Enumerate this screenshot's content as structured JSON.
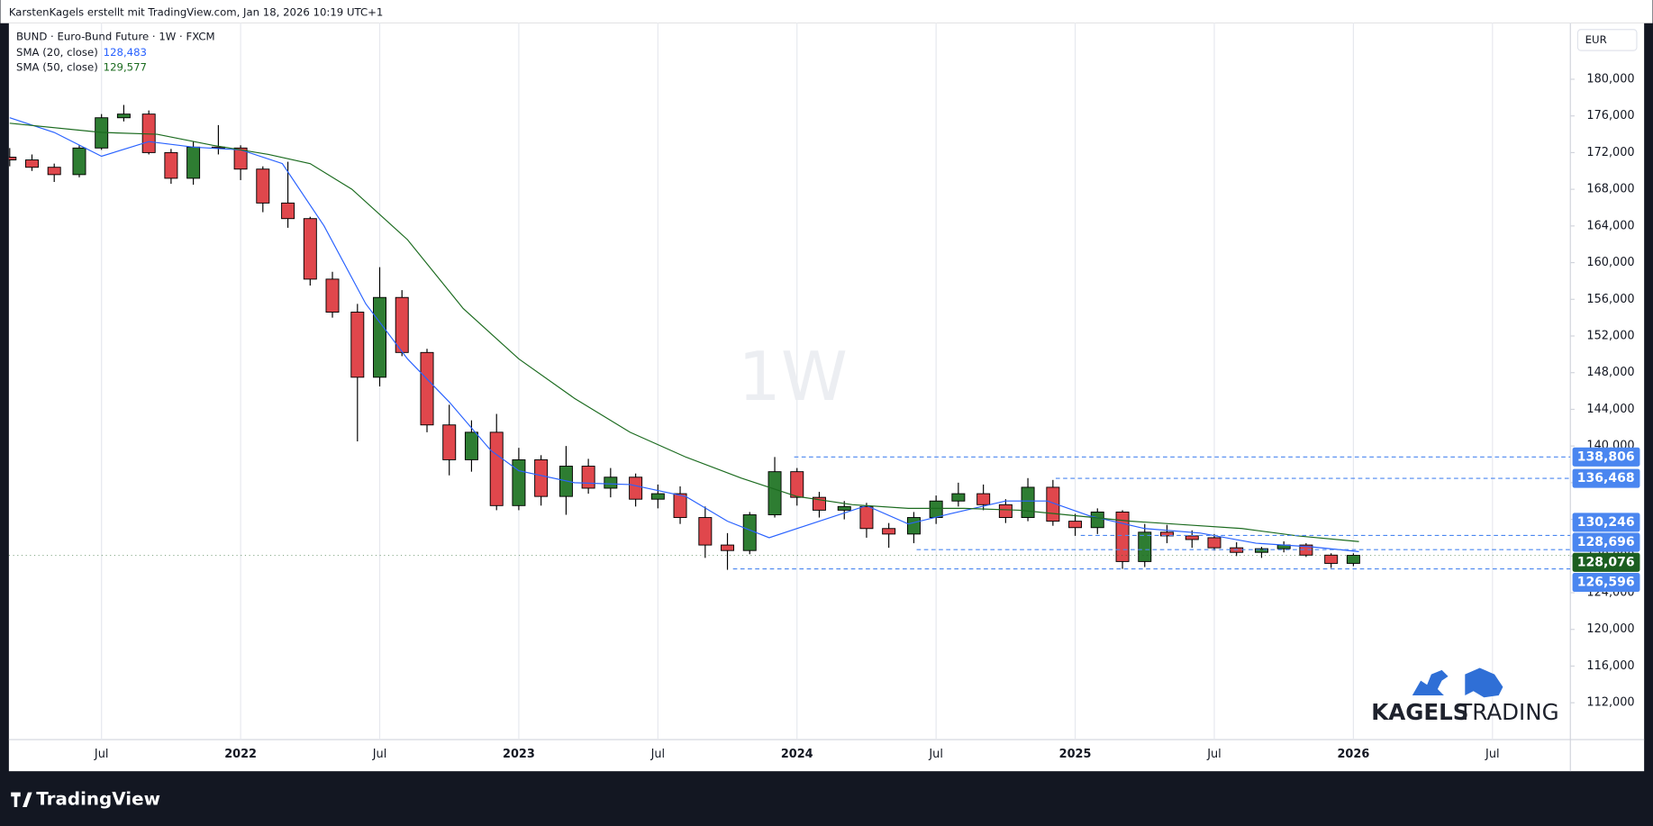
{
  "attribution": "KarstenKagels erstellt mit TradingView.com, Jan 18, 2026 10:19 UTC+1",
  "footer_brand": "TradingView",
  "logo": {
    "bold": "KAGELS",
    "light": "TRADING"
  },
  "chart_data": {
    "type": "candlestick",
    "title": "BUND · Euro-Bund Future · 1W · FXCM",
    "currency": "EUR",
    "watermark": "1W",
    "up_color": "#2e7d32",
    "down_color": "#e0474c",
    "grid": true,
    "x": [
      2021.17,
      2021.25,
      2021.33,
      2021.42,
      2021.5,
      2021.58,
      2021.67,
      2021.75,
      2021.83,
      2021.92,
      2022.0,
      2022.08,
      2022.17,
      2022.25,
      2022.33,
      2022.42,
      2022.5,
      2022.58,
      2022.67,
      2022.75,
      2022.83,
      2022.92,
      2023.0,
      2023.08,
      2023.17,
      2023.25,
      2023.33,
      2023.42,
      2023.5,
      2023.58,
      2023.67,
      2023.75,
      2023.83,
      2023.92,
      2024.0,
      2024.08,
      2024.17,
      2024.25,
      2024.33,
      2024.42,
      2024.5,
      2024.58,
      2024.67,
      2024.75,
      2024.83,
      2024.92,
      2025.0,
      2025.08,
      2025.17,
      2025.25,
      2025.33,
      2025.42,
      2025.5,
      2025.58,
      2025.67,
      2025.75,
      2025.83,
      2025.92,
      2026.0
    ],
    "open": [
      171.5,
      171.2,
      170.4,
      169.6,
      172.5,
      175.8,
      176.2,
      172,
      169.2,
      172.6,
      172.5,
      170.2,
      166.5,
      164.8,
      158.2,
      154.6,
      147.5,
      156.2,
      150.2,
      142.3,
      138.5,
      141.5,
      133.5,
      138.5,
      134.5,
      137.8,
      135.4,
      136.6,
      134.2,
      134.8,
      132.2,
      129.2,
      128.6,
      132.5,
      137.2,
      134.4,
      133,
      133.4,
      131,
      130.4,
      132.2,
      134,
      134.8,
      133.6,
      132.2,
      135.5,
      131.8,
      131.1,
      132.8,
      127.4,
      130.6,
      130.2,
      130,
      128.9,
      128.4,
      128.8,
      129.2,
      128.1,
      127.2
    ],
    "high": [
      172.5,
      171.8,
      170.8,
      172.8,
      176.2,
      177.2,
      176.6,
      172.4,
      173.2,
      175,
      172.8,
      170.5,
      171,
      165,
      159,
      155.5,
      159.5,
      157,
      150.6,
      144.5,
      142.8,
      143.5,
      139.8,
      139,
      140,
      138.6,
      137.6,
      137,
      135.8,
      135.6,
      133.4,
      130.5,
      132.8,
      138.8,
      137.6,
      135,
      134,
      133.8,
      131.6,
      132.8,
      134.6,
      136,
      135.8,
      134.2,
      136.5,
      136.3,
      132.6,
      133.2,
      133,
      131.5,
      131.4,
      130.8,
      130.4,
      129.5,
      129,
      129.6,
      129.4,
      128.3,
      128.3
    ],
    "low": [
      170.5,
      170,
      168.8,
      169.3,
      172.3,
      175.4,
      171.8,
      168.6,
      168.5,
      171.8,
      169,
      165.5,
      163.8,
      157.5,
      154,
      140.5,
      146.5,
      149.8,
      141.5,
      136.8,
      137.2,
      133,
      133,
      133.5,
      132.5,
      134.8,
      134.4,
      133.4,
      133.2,
      131.5,
      127.8,
      126.5,
      128.2,
      132.2,
      133.5,
      132.2,
      132,
      130,
      128.9,
      129.4,
      131.5,
      133.4,
      133,
      131.6,
      131.8,
      131.3,
      130.2,
      130.4,
      126.6,
      126.8,
      129.4,
      128.9,
      128.6,
      128,
      127.8,
      128.4,
      127.9,
      126.7,
      126.9
    ],
    "close": [
      171.2,
      170.4,
      169.6,
      172.5,
      175.8,
      176.2,
      172,
      169.2,
      172.6,
      172.5,
      170.2,
      166.5,
      164.8,
      158.2,
      154.6,
      147.5,
      156.2,
      150.2,
      142.3,
      138.5,
      141.5,
      133.5,
      138.5,
      134.5,
      137.8,
      135.4,
      136.6,
      134.2,
      134.8,
      132.2,
      129.2,
      128.6,
      132.5,
      137.2,
      134.4,
      133,
      133.4,
      131,
      130.4,
      132.2,
      134,
      134.8,
      133.6,
      132.2,
      135.5,
      131.8,
      131.1,
      132.8,
      127.4,
      130.6,
      130.2,
      129.8,
      128.9,
      128.4,
      128.8,
      129.2,
      128.1,
      127.2,
      128.076
    ],
    "series": [
      {
        "name": "SMA (20, close)",
        "color": "#2962ff",
        "last": {
          "value": 128.483,
          "label": "128,483"
        },
        "x": [
          2021.17,
          2021.33,
          2021.5,
          2021.67,
          2021.83,
          2022.0,
          2022.15,
          2022.3,
          2022.45,
          2022.6,
          2022.75,
          2022.9,
          2023.0,
          2023.2,
          2023.4,
          2023.6,
          2023.75,
          2023.9,
          2024.05,
          2024.25,
          2024.4,
          2024.55,
          2024.75,
          2024.9,
          2025.05,
          2025.25,
          2025.45,
          2025.65,
          2025.85,
          2026.02
        ],
        "values": [
          175.8,
          174.2,
          171.6,
          173.2,
          172.6,
          172.3,
          170.8,
          164,
          155.5,
          149.5,
          144.8,
          139.5,
          137.3,
          136,
          135.8,
          134.5,
          131.8,
          130,
          131.5,
          133.5,
          131.5,
          132.6,
          134,
          134,
          132.4,
          131,
          130.5,
          129.4,
          129,
          128.483
        ]
      },
      {
        "name": "SMA (50, close)",
        "color": "#1b6b1f",
        "last": {
          "value": 129.577,
          "label": "129,577"
        },
        "x": [
          2021.17,
          2021.5,
          2021.7,
          2021.9,
          2022.1,
          2022.25,
          2022.4,
          2022.6,
          2022.8,
          2023.0,
          2023.2,
          2023.4,
          2023.6,
          2023.8,
          2024.0,
          2024.2,
          2024.4,
          2024.6,
          2024.8,
          2025.0,
          2025.2,
          2025.4,
          2025.6,
          2025.8,
          2026.02
        ],
        "values": [
          175.2,
          174.2,
          174,
          172.8,
          171.8,
          170.8,
          168,
          162.5,
          155,
          149.5,
          145.2,
          141.5,
          138.8,
          136.5,
          134.5,
          133.6,
          133.2,
          133.2,
          133,
          132.4,
          131.8,
          131.4,
          131,
          130.2,
          129.577
        ]
      }
    ],
    "levels": [
      {
        "value": 138.806,
        "label": "138,806",
        "from": 2023.99
      },
      {
        "value": 136.468,
        "label": "136,468",
        "from": 2024.93
      },
      {
        "value": 130.246,
        "label": "130,246",
        "from": 2025.02
      },
      {
        "value": 128.696,
        "label": "128,696",
        "from": 2024.43
      },
      {
        "value": 126.596,
        "label": "126,596",
        "from": 2023.77
      }
    ],
    "level_color": "#4a86f0",
    "price": {
      "value": 128.076,
      "label": "128,076",
      "color": "#1b5e20"
    },
    "xlim": [
      2021.167,
      2026.78
    ],
    "ylim": [
      107.98,
      185.77
    ],
    "xticks": [
      {
        "value": 2021.5,
        "label": "Jul"
      },
      2022,
      {
        "value": 2022.5,
        "label": "Jul"
      },
      2023,
      {
        "value": 2023.5,
        "label": "Jul"
      },
      2024,
      {
        "value": 2024.5,
        "label": "Jul"
      },
      2025,
      {
        "value": 2025.5,
        "label": "Jul"
      },
      2026,
      {
        "value": 2026.5,
        "label": "Jul"
      }
    ],
    "yticks": [
      {
        "value": 112,
        "label": "112,000"
      },
      {
        "value": 116,
        "label": "116,000"
      },
      {
        "value": 120,
        "label": "120,000"
      },
      {
        "value": 124,
        "label": "124,000"
      },
      {
        "value": 128,
        "label": "128,000"
      },
      {
        "value": 132,
        "label": "132,000"
      },
      {
        "value": 136,
        "label": "136,000"
      },
      {
        "value": 140,
        "label": "140,000"
      },
      {
        "value": 144,
        "label": "144,000"
      },
      {
        "value": 148,
        "label": "148,000"
      },
      {
        "value": 152,
        "label": "152,000"
      },
      {
        "value": 156,
        "label": "156,000"
      },
      {
        "value": 160,
        "label": "160,000"
      },
      {
        "value": 164,
        "label": "164,000"
      },
      {
        "value": 168,
        "label": "168,000"
      },
      {
        "value": 172,
        "label": "172,000"
      },
      {
        "value": 176,
        "label": "176,000"
      },
      {
        "value": 180,
        "label": "180,000"
      }
    ]
  }
}
